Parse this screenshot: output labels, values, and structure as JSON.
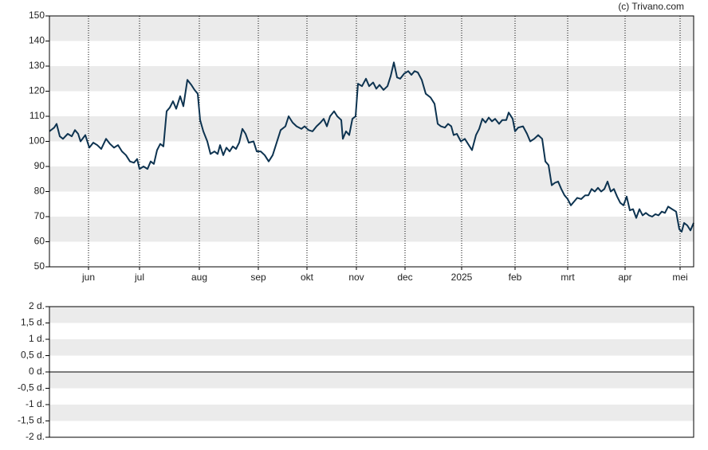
{
  "credit": "(c) Trivano.com",
  "chart_data": [
    {
      "type": "line",
      "x": [
        0,
        6,
        9,
        13,
        17,
        23,
        28,
        32,
        36,
        39,
        45,
        50,
        55,
        60,
        65,
        71,
        76,
        81,
        86,
        91,
        96,
        101,
        106,
        110,
        113,
        118,
        123,
        127,
        131,
        135,
        139,
        143,
        147,
        151,
        155,
        159,
        164,
        168,
        173,
        178,
        182,
        186,
        189,
        193,
        198,
        202,
        207,
        211,
        214,
        218,
        222,
        226,
        230,
        234,
        238,
        242,
        246,
        250,
        256,
        260,
        265,
        270,
        275,
        280,
        285,
        290,
        296,
        300,
        305,
        310,
        316,
        320,
        325,
        330,
        335,
        340,
        344,
        348,
        352,
        357,
        361,
        366,
        368,
        372,
        376,
        380,
        384,
        387,
        392,
        397,
        401,
        406,
        410,
        414,
        419,
        424,
        428,
        432,
        436,
        440,
        445,
        450,
        454,
        458,
        462,
        467,
        472,
        478,
        483,
        487,
        491,
        496,
        500,
        504,
        507,
        511,
        516,
        521,
        526,
        530,
        535,
        539,
        543,
        547,
        551,
        555,
        559,
        564,
        568,
        573,
        576,
        581,
        584,
        588,
        594,
        599,
        603,
        608,
        613,
        618,
        622,
        626,
        630,
        634,
        638,
        642,
        646,
        650,
        654,
        658,
        662,
        667,
        672,
        676,
        680,
        684,
        688,
        692,
        696,
        700,
        704,
        708,
        712,
        716,
        720,
        724,
        728,
        732,
        736,
        740,
        744,
        748,
        752,
        756,
        760,
        764,
        768,
        772,
        776,
        781,
        786,
        790,
        793,
        796,
        800,
        804,
        808
      ],
      "values": [
        104,
        105.5,
        107,
        102,
        101,
        103,
        102,
        104.5,
        103,
        100,
        102.5,
        97.5,
        99.5,
        98.5,
        97,
        101,
        99,
        97.5,
        98.5,
        96,
        94.5,
        92,
        91.5,
        93,
        89,
        90,
        89,
        92,
        91,
        96.5,
        99,
        98,
        112,
        113.5,
        116,
        113,
        118,
        114,
        124.5,
        122.5,
        120.5,
        119,
        108.5,
        104,
        100,
        95,
        96,
        95,
        98.5,
        94.5,
        97.5,
        96,
        98,
        97,
        99.5,
        105,
        103,
        99.5,
        100,
        96,
        96,
        94.5,
        92,
        94.5,
        99.5,
        104.5,
        106,
        110,
        107.5,
        106,
        105,
        106,
        104.5,
        104,
        106,
        107.5,
        109,
        106,
        110,
        112,
        110,
        108.5,
        101,
        104,
        102.5,
        109,
        110,
        123,
        122,
        125,
        122,
        123.5,
        121,
        122.5,
        120.5,
        122,
        126,
        131.5,
        125.5,
        125,
        127,
        128,
        126.5,
        128,
        127.5,
        124.5,
        119,
        117.5,
        115,
        107,
        106,
        105.5,
        107,
        106,
        102.5,
        103,
        100,
        101,
        98.5,
        96.5,
        102.5,
        105,
        109,
        107.5,
        109.5,
        108,
        109,
        107,
        108.5,
        108.5,
        111.5,
        109,
        104,
        105.5,
        106,
        103,
        100,
        101,
        102.5,
        101,
        92,
        90.5,
        82.5,
        83.5,
        84,
        81,
        78.5,
        77,
        74.5,
        76,
        77.5,
        77,
        78.5,
        78.5,
        81,
        80,
        81.5,
        80,
        81,
        84,
        80,
        81,
        78,
        75.5,
        74.5,
        78,
        72.5,
        73,
        69.5,
        73,
        70.5,
        71.5,
        70.5,
        70,
        71,
        70.5,
        72,
        71.5,
        74,
        73,
        72,
        65,
        64,
        67.5,
        66.5,
        64.5,
        67.5
      ],
      "color": "#0d3350",
      "xlim": [
        0,
        808
      ],
      "xticks": [
        {
          "value": 49,
          "label": "jun"
        },
        {
          "value": 113,
          "label": "jul"
        },
        {
          "value": 188,
          "label": "aug"
        },
        {
          "value": 262,
          "label": "sep"
        },
        {
          "value": 323,
          "label": "okt"
        },
        {
          "value": 385,
          "label": "nov"
        },
        {
          "value": 446,
          "label": "dec"
        },
        {
          "value": 517,
          "label": "2025"
        },
        {
          "value": 584,
          "label": "feb"
        },
        {
          "value": 650,
          "label": "mrt"
        },
        {
          "value": 722,
          "label": "apr"
        },
        {
          "value": 791,
          "label": "mei"
        }
      ],
      "ylim": [
        50,
        150
      ],
      "yticks": [
        50,
        60,
        70,
        80,
        90,
        100,
        110,
        120,
        130,
        140,
        150
      ],
      "grid": true
    },
    {
      "type": "line",
      "ylim": [
        -2,
        2
      ],
      "yticks": [
        {
          "value": 2,
          "label": "2 d."
        },
        {
          "value": 1.5,
          "label": "1,5 d."
        },
        {
          "value": 1,
          "label": "1 d."
        },
        {
          "value": 0.5,
          "label": "0,5 d."
        },
        {
          "value": 0,
          "label": "0 d."
        },
        {
          "value": -0.5,
          "label": "-0,5 d."
        },
        {
          "value": -1,
          "label": "-1 d."
        },
        {
          "value": -1.5,
          "label": "-1,5 d."
        },
        {
          "value": -2,
          "label": "-2 d."
        }
      ]
    }
  ]
}
